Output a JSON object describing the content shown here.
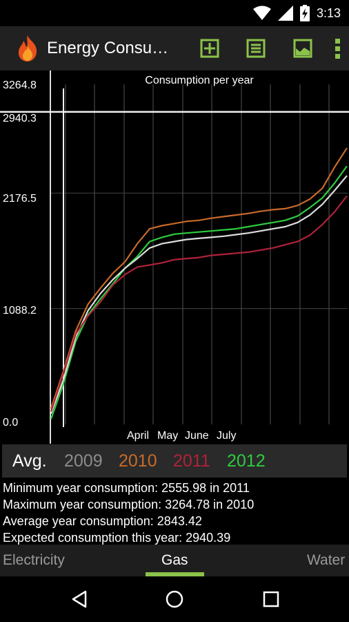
{
  "status_bar": {
    "time": "3:13",
    "icons": [
      "wifi-icon",
      "signal-icon",
      "battery-icon"
    ]
  },
  "app_bar": {
    "title": "Energy Consu…",
    "actions": [
      "add-reading-icon",
      "list-icon",
      "chart-icon",
      "overflow-menu-icon"
    ],
    "accent_color": "#8bc34a"
  },
  "chart_data": {
    "type": "line",
    "title": "Consumption per year",
    "y_tick_labels": [
      "3264.8",
      "2940.3",
      "2176.5",
      "1088.2",
      "0.0"
    ],
    "x_tick_labels": [
      "April",
      "May",
      "June",
      "July"
    ],
    "reference_line": {
      "label": "2940.3",
      "value": 2940.3
    },
    "x_domain": [
      0,
      12
    ],
    "y_domain": [
      0,
      3264.8
    ],
    "series": [
      {
        "name": "2010",
        "color": "#c96a2a",
        "values": [
          [
            0,
            150
          ],
          [
            0.5,
            500
          ],
          [
            1,
            880
          ],
          [
            1.5,
            1130
          ],
          [
            2,
            1280
          ],
          [
            2.5,
            1420
          ],
          [
            3,
            1530
          ],
          [
            3.5,
            1700
          ],
          [
            4,
            1840
          ],
          [
            4.5,
            1870
          ],
          [
            5,
            1890
          ],
          [
            5.5,
            1910
          ],
          [
            6,
            1920
          ],
          [
            6.5,
            1940
          ],
          [
            7,
            1955
          ],
          [
            7.5,
            1970
          ],
          [
            8,
            1985
          ],
          [
            8.5,
            2005
          ],
          [
            9,
            2020
          ],
          [
            9.5,
            2030
          ],
          [
            10,
            2060
          ],
          [
            10.5,
            2120
          ],
          [
            11,
            2220
          ],
          [
            11.5,
            2420
          ],
          [
            12,
            2600
          ]
        ]
      },
      {
        "name": "2012",
        "color": "#2ecc40",
        "values": [
          [
            0,
            50
          ],
          [
            0.5,
            380
          ],
          [
            1,
            780
          ],
          [
            1.5,
            1030
          ],
          [
            2,
            1180
          ],
          [
            2.5,
            1320
          ],
          [
            3,
            1470
          ],
          [
            3.5,
            1580
          ],
          [
            4,
            1720
          ],
          [
            4.5,
            1760
          ],
          [
            5,
            1790
          ],
          [
            5.5,
            1800
          ],
          [
            6,
            1810
          ],
          [
            6.5,
            1820
          ],
          [
            7,
            1830
          ],
          [
            7.5,
            1840
          ],
          [
            8,
            1860
          ],
          [
            8.5,
            1880
          ],
          [
            9,
            1900
          ],
          [
            9.5,
            1920
          ],
          [
            10,
            1960
          ],
          [
            10.5,
            2040
          ],
          [
            11,
            2130
          ],
          [
            11.5,
            2270
          ],
          [
            12,
            2430
          ]
        ]
      },
      {
        "name": "Avg.",
        "color": "#dddddd",
        "values": [
          [
            0,
            100
          ],
          [
            0.5,
            420
          ],
          [
            1,
            820
          ],
          [
            1.5,
            1070
          ],
          [
            2,
            1230
          ],
          [
            2.5,
            1360
          ],
          [
            3,
            1470
          ],
          [
            3.5,
            1560
          ],
          [
            4,
            1660
          ],
          [
            4.5,
            1700
          ],
          [
            5,
            1720
          ],
          [
            5.5,
            1740
          ],
          [
            6,
            1750
          ],
          [
            6.5,
            1760
          ],
          [
            7,
            1770
          ],
          [
            7.5,
            1785
          ],
          [
            8,
            1800
          ],
          [
            8.5,
            1820
          ],
          [
            9,
            1840
          ],
          [
            9.5,
            1860
          ],
          [
            10,
            1900
          ],
          [
            10.5,
            1970
          ],
          [
            11,
            2070
          ],
          [
            11.5,
            2200
          ],
          [
            12,
            2340
          ]
        ]
      },
      {
        "name": "2011",
        "color": "#b0223a",
        "values": [
          [
            0,
            120
          ],
          [
            0.5,
            480
          ],
          [
            1,
            850
          ],
          [
            1.5,
            1020
          ],
          [
            2,
            1150
          ],
          [
            2.5,
            1310
          ],
          [
            3,
            1410
          ],
          [
            3.5,
            1480
          ],
          [
            4,
            1500
          ],
          [
            4.5,
            1520
          ],
          [
            5,
            1550
          ],
          [
            5.5,
            1560
          ],
          [
            6,
            1570
          ],
          [
            6.5,
            1590
          ],
          [
            7,
            1600
          ],
          [
            7.5,
            1610
          ],
          [
            8,
            1620
          ],
          [
            8.5,
            1640
          ],
          [
            9,
            1660
          ],
          [
            9.5,
            1690
          ],
          [
            10,
            1720
          ],
          [
            10.5,
            1780
          ],
          [
            11,
            1880
          ],
          [
            11.5,
            2000
          ],
          [
            12,
            2150
          ]
        ]
      }
    ]
  },
  "legend": [
    {
      "label": "Avg.",
      "color": "#ffffff"
    },
    {
      "label": "2009",
      "color": "#8c8c8c"
    },
    {
      "label": "2010",
      "color": "#c96a2a"
    },
    {
      "label": "2011",
      "color": "#b0223a"
    },
    {
      "label": "2012",
      "color": "#2ecc40"
    }
  ],
  "stats": {
    "min": "Minimum year consumption: 2555.98 in 2011",
    "max": "Maximum year consumption: 3264.78 in 2010",
    "avg": "Average year consumption: 2843.42",
    "expected": "Expected consumption this year: 2940.39"
  },
  "tabs": [
    {
      "label": "Electricity",
      "selected": false
    },
    {
      "label": "Gas",
      "selected": true
    },
    {
      "label": "Water",
      "selected": false
    }
  ],
  "nav_bar": [
    "back-icon",
    "home-icon",
    "recents-icon"
  ]
}
